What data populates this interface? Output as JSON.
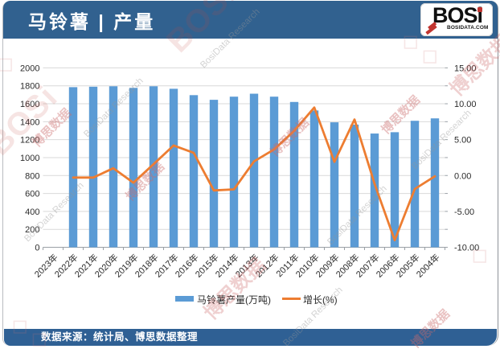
{
  "header": {
    "title": "马铃薯 | 产量"
  },
  "logo": {
    "name": "BOSi",
    "text_b": "BOS",
    "text_i": "i",
    "domain": "BOSIDATA.COM"
  },
  "footer": {
    "source": "数据来源：统计局、博思数据整理"
  },
  "watermark": {
    "cjk": "博思数据",
    "latin": "BosiData Research",
    "big": "BOSi",
    "domain": "BOSIDATA.COM",
    "diamond": "◇"
  },
  "chart_data": {
    "type": "combo",
    "title": "马铃薯 | 产量",
    "categories": [
      "2023年",
      "2022年",
      "2021年",
      "2020年",
      "2019年",
      "2018年",
      "2017年",
      "2016年",
      "2015年",
      "2014年",
      "2013年",
      "2012年",
      "2011年",
      "2010年",
      "2009年",
      "2008年",
      "2007年",
      "2006年",
      "2005年",
      "2004年"
    ],
    "series": [
      {
        "name": "马铃薯产量(万吨)",
        "type": "bar",
        "color": "#5b9bd5",
        "values": [
          null,
          1785,
          1790,
          1795,
          1777,
          1795,
          1767,
          1696,
          1644,
          1679,
          1712,
          1679,
          1620,
          1525,
          1393,
          1367,
          1268,
          1283,
          1410,
          1437
        ]
      },
      {
        "name": "增长(%)",
        "type": "line",
        "color": "#ed7d31",
        "values": [
          null,
          -0.28,
          -0.28,
          1.01,
          -1.0,
          1.58,
          4.19,
          3.16,
          -2.08,
          -1.93,
          1.97,
          3.64,
          6.23,
          9.48,
          1.9,
          7.81,
          -1.17,
          -9.01,
          -1.88,
          -0.1
        ]
      }
    ],
    "y_left": {
      "min": 0,
      "max": 2000,
      "step": 200,
      "ticks": [
        "0",
        "200",
        "400",
        "600",
        "800",
        "1000",
        "1200",
        "1400",
        "1600",
        "1800",
        "2000"
      ]
    },
    "y_right": {
      "min": -10,
      "max": 15,
      "step": 5,
      "ticks": [
        "-10.00",
        "-5.00",
        "0.00",
        "5.00",
        "10.00",
        "15.00"
      ]
    },
    "grid": true,
    "legend_position": "bottom"
  }
}
